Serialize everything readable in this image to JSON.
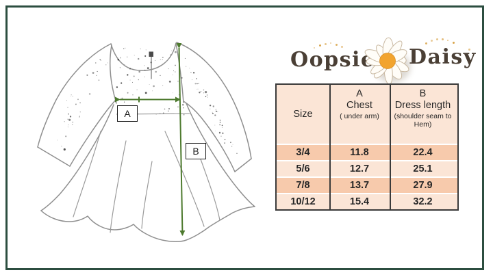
{
  "logo": {
    "word1": "Oopsie",
    "word2": "Daisy"
  },
  "diagram": {
    "label_a": "A",
    "label_b": "B"
  },
  "size_table": {
    "header": {
      "col1_title": "Size",
      "col2_top": "A",
      "col2_title": "Chest",
      "col2_sub": "( under arm)",
      "col3_top": "B",
      "col3_title": "Dress length",
      "col3_sub": "(shoulder seam to Hem)"
    },
    "rows": [
      {
        "size": "3/4",
        "chest": "11.8",
        "length": "22.4"
      },
      {
        "size": "5/6",
        "chest": "12.7",
        "length": "25.1"
      },
      {
        "size": "7/8",
        "chest": "13.7",
        "length": "27.9"
      },
      {
        "size": "10/12",
        "chest": "15.4",
        "length": "32.2"
      }
    ]
  },
  "colors": {
    "frame_green": "#2c4e40",
    "arrow_green": "#4d7a2e",
    "line_gray": "#8f8f8f",
    "logo_brown": "#4a3f35",
    "dot_tan": "#d9a44a",
    "daisy_center": "#f2a42f",
    "table_border": "#3a3a3a",
    "row_dark": "#f7caac",
    "row_light": "#fbe5d6"
  }
}
